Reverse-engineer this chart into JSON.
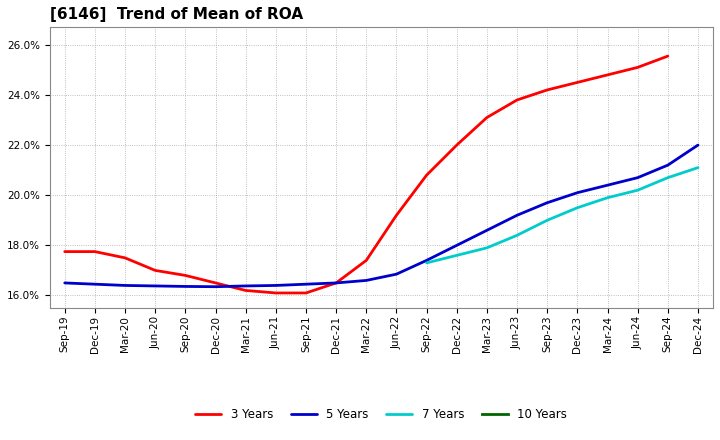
{
  "title": "[6146]  Trend of Mean of ROA",
  "ylim": [
    0.155,
    0.267
  ],
  "yticks": [
    0.16,
    0.18,
    0.2,
    0.22,
    0.24,
    0.26
  ],
  "background_color": "#ffffff",
  "grid_color": "#aaaaaa",
  "x_labels": [
    "Sep-19",
    "Dec-19",
    "Mar-20",
    "Jun-20",
    "Sep-20",
    "Dec-20",
    "Mar-21",
    "Jun-21",
    "Sep-21",
    "Dec-21",
    "Mar-22",
    "Jun-22",
    "Sep-22",
    "Dec-22",
    "Mar-23",
    "Jun-23",
    "Sep-23",
    "Dec-23",
    "Mar-24",
    "Jun-24",
    "Sep-24",
    "Dec-24"
  ],
  "series": {
    "3 Years": {
      "color": "#ff0000",
      "data": [
        0.1775,
        0.1775,
        0.175,
        0.17,
        0.168,
        0.165,
        0.162,
        0.161,
        0.161,
        0.165,
        0.174,
        0.192,
        0.208,
        0.22,
        0.231,
        0.238,
        0.242,
        0.245,
        0.248,
        0.251,
        0.2555,
        null
      ]
    },
    "5 Years": {
      "color": "#0000cc",
      "data": [
        0.165,
        0.1645,
        0.164,
        0.1638,
        0.1636,
        0.1635,
        0.1638,
        0.164,
        0.1645,
        0.165,
        0.166,
        0.1685,
        0.174,
        0.18,
        0.186,
        0.192,
        0.197,
        0.201,
        0.204,
        0.207,
        0.212,
        0.22
      ]
    },
    "7 Years": {
      "color": "#00cccc",
      "data": [
        null,
        null,
        null,
        null,
        null,
        null,
        null,
        null,
        null,
        null,
        null,
        null,
        0.173,
        0.176,
        0.179,
        0.184,
        0.19,
        0.195,
        0.199,
        0.202,
        0.207,
        0.211
      ]
    },
    "10 Years": {
      "color": "#006600",
      "data": [
        null,
        null,
        null,
        null,
        null,
        null,
        null,
        null,
        null,
        null,
        null,
        null,
        null,
        null,
        null,
        null,
        null,
        null,
        null,
        null,
        null,
        null
      ]
    }
  },
  "legend": [
    "3 Years",
    "5 Years",
    "7 Years",
    "10 Years"
  ],
  "title_fontsize": 11,
  "tick_fontsize": 7.5,
  "line_width": 2.0
}
